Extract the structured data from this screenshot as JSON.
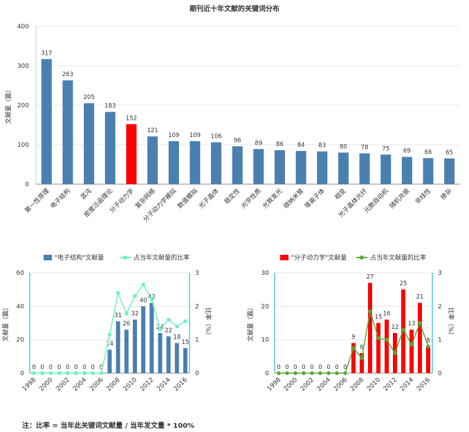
{
  "chart_data": [
    {
      "type": "bar",
      "title": "期刊近十年文献的关键词分布",
      "ylabel": "文献量（篇）",
      "xlabel": "",
      "ylim": [
        0,
        400
      ],
      "yticks": [
        0,
        100,
        200,
        300,
        400
      ],
      "grid": true,
      "categories": [
        "第一性原理",
        "电子结构",
        "混沌",
        "密度泛函理论",
        "分子动力学",
        "复杂网络",
        "分子动力学模拟",
        "数值模拟",
        "光子晶体",
        "稳定性",
        "光学性质",
        "光致发光",
        "碳纳米管",
        "等离子体",
        "相变",
        "光子晶体光纤",
        "元胞自动机",
        "随机共振",
        "非线性",
        "掺杂"
      ],
      "values": [
        317,
        263,
        205,
        183,
        152,
        121,
        109,
        109,
        106,
        96,
        89,
        86,
        84,
        83,
        80,
        78,
        75,
        69,
        66,
        65
      ],
      "bar_color": "#4a7fb0",
      "highlight_index": 4,
      "highlight_color": "#ff0000"
    },
    {
      "type": "bar+line",
      "legend": [
        "\"电子结构\"文献量",
        "占当年文献量的比率"
      ],
      "legend_position": "top",
      "ylabel": "文献量（篇）",
      "y2label": "比率（%）",
      "ylim": [
        0,
        60
      ],
      "yticks": [
        0,
        20,
        40,
        60
      ],
      "y2lim": [
        0,
        3
      ],
      "y2ticks": [
        0,
        1,
        2,
        3
      ],
      "x": [
        "1998",
        "1999",
        "2000",
        "2001",
        "2002",
        "2003",
        "2004",
        "2005",
        "2006",
        "2007",
        "2008",
        "2009",
        "2010",
        "2011",
        "2012",
        "2013",
        "2014",
        "2015",
        "2016"
      ],
      "xtick_labels": [
        "1998",
        "2000",
        "2002",
        "2004",
        "2006",
        "2008",
        "2010",
        "2012",
        "2014",
        "2016"
      ],
      "bar_values": [
        0,
        0,
        0,
        0,
        0,
        0,
        0,
        0,
        0,
        14,
        31,
        26,
        32,
        40,
        42,
        24,
        22,
        18,
        15
      ],
      "line_values": [
        0,
        0,
        0,
        0,
        0,
        0,
        0,
        0,
        0,
        1.15,
        2.4,
        1.78,
        2.3,
        2.65,
        2.2,
        1.3,
        1.6,
        1.4,
        1.55
      ],
      "bar_color": "#4a7fb0",
      "line_color": "#6ff0c0"
    },
    {
      "type": "bar+line",
      "legend": [
        "\"分子动力学\"文献量",
        "占当年文献量的比率"
      ],
      "legend_position": "top",
      "ylabel": "文献量（篇）",
      "y2label": "比率（%）",
      "ylim": [
        0,
        30
      ],
      "yticks": [
        0,
        10,
        20,
        30
      ],
      "y2lim": [
        0,
        3
      ],
      "y2ticks": [
        0,
        1,
        2,
        3
      ],
      "x": [
        "1998",
        "1999",
        "2000",
        "2001",
        "2002",
        "2003",
        "2004",
        "2005",
        "2006",
        "2007",
        "2008",
        "2009",
        "2010",
        "2011",
        "2012",
        "2013",
        "2014",
        "2015",
        "2016"
      ],
      "xtick_labels": [
        "1998",
        "2000",
        "2002",
        "2004",
        "2006",
        "2008",
        "2010",
        "2012",
        "2014",
        "2016"
      ],
      "bar_values": [
        0,
        0,
        0,
        0,
        0,
        0,
        0,
        0,
        0,
        9,
        6,
        27,
        15,
        16,
        12,
        25,
        13,
        21,
        8
      ],
      "line_values": [
        0,
        0,
        0,
        0,
        0,
        0,
        0,
        0,
        0,
        0.75,
        0.45,
        1.85,
        1.05,
        1.0,
        0.6,
        1.3,
        0.85,
        1.5,
        0.8
      ],
      "bar_color": "#ff0000",
      "line_color": "#5aaa3a"
    }
  ],
  "footnote": "注：比率 = 当年此关键词文献量 / 当年发文量 * 100%"
}
